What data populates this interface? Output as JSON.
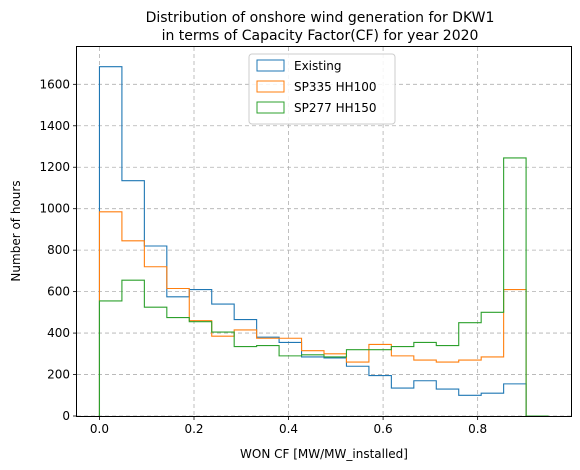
{
  "chart_data": {
    "type": "histogram",
    "title_line1": "Distribution of onshore wind generation for DKW1",
    "title_line2": "in terms of Capacity Factor(CF) for year 2020",
    "xlabel": "WON CF [MW/MW_installed]",
    "ylabel": "Number of hours",
    "xlim": [
      -0.0475,
      0.9975
    ],
    "ylim": [
      0,
      1780
    ],
    "xticks": [
      0.0,
      0.2,
      0.4,
      0.6,
      0.8
    ],
    "xtick_labels": [
      "0.0",
      "0.2",
      "0.4",
      "0.6",
      "0.8"
    ],
    "yticks": [
      0,
      200,
      400,
      600,
      800,
      1000,
      1200,
      1400,
      1600
    ],
    "ytick_labels": [
      "0",
      "200",
      "400",
      "600",
      "800",
      "1000",
      "1200",
      "1400",
      "1600"
    ],
    "grid": true,
    "legend_position": "upper-center",
    "bin_edges": [
      0.0,
      0.0475,
      0.095,
      0.1425,
      0.19,
      0.2375,
      0.285,
      0.3325,
      0.38,
      0.4275,
      0.475,
      0.5225,
      0.57,
      0.6175,
      0.665,
      0.7125,
      0.76,
      0.8075,
      0.855,
      0.9025,
      0.95
    ],
    "series": [
      {
        "name": "Existing",
        "color": "#1f77b4",
        "values": [
          1685,
          1135,
          820,
          575,
          610,
          540,
          465,
          380,
          355,
          285,
          280,
          240,
          195,
          135,
          170,
          130,
          100,
          110,
          155,
          0
        ]
      },
      {
        "name": "SP335 HH100",
        "color": "#ff7f0e",
        "values": [
          985,
          845,
          720,
          615,
          460,
          385,
          415,
          375,
          375,
          315,
          300,
          260,
          345,
          290,
          270,
          260,
          270,
          285,
          610,
          0
        ]
      },
      {
        "name": "SP277 HH150",
        "color": "#2ca02c",
        "values": [
          555,
          655,
          525,
          475,
          455,
          405,
          335,
          340,
          290,
          295,
          285,
          320,
          320,
          335,
          355,
          340,
          450,
          500,
          1245,
          0
        ]
      }
    ]
  }
}
